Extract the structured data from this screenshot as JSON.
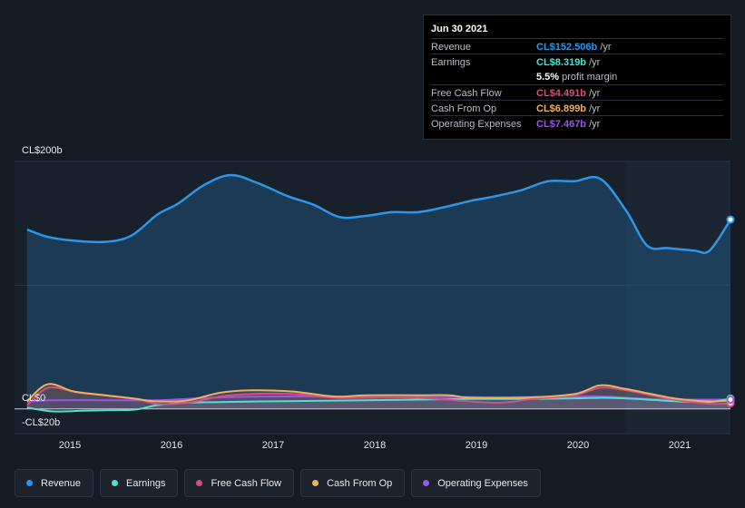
{
  "chart_data": {
    "type": "area",
    "y_ticks": [
      {
        "label": "CL$200b",
        "value": 200
      },
      {
        "label": "CL$0",
        "value": 0
      },
      {
        "label": "-CL$20b",
        "value": -20
      }
    ],
    "x_ticks": [
      "2015",
      "2016",
      "2017",
      "2018",
      "2019",
      "2020",
      "2021"
    ],
    "ylim": [
      -20,
      200
    ],
    "xlim": [
      2014.63,
      2021.5
    ],
    "forecast_start": 2020.5,
    "series": [
      {
        "name": "Revenue",
        "color": "#2e96e6",
        "x": [
          2014.75,
          2014.95,
          2015.2,
          2015.5,
          2015.75,
          2016.0,
          2016.2,
          2016.45,
          2016.7,
          2016.95,
          2017.25,
          2017.5,
          2017.75,
          2018.0,
          2018.25,
          2018.5,
          2018.75,
          2019.0,
          2019.25,
          2019.5,
          2019.75,
          2020.0,
          2020.25,
          2020.5,
          2020.7,
          2020.9,
          2021.15,
          2021.3,
          2021.5
        ],
        "values": [
          145,
          139,
          136,
          135,
          140,
          157,
          166,
          181,
          189,
          183,
          172,
          165,
          155,
          156,
          159,
          159,
          163,
          168,
          172,
          177,
          184,
          184,
          186,
          160,
          132,
          130,
          128,
          128,
          153
        ]
      },
      {
        "name": "Earnings",
        "color": "#4fe0d1",
        "x": [
          2014.75,
          2015.0,
          2015.3,
          2015.6,
          2015.8,
          2016.0,
          2016.3,
          2016.6,
          2017.0,
          2017.5,
          2018.0,
          2018.5,
          2019.0,
          2019.5,
          2020.0,
          2020.3,
          2020.6,
          2021.0,
          2021.3,
          2021.5
        ],
        "values": [
          1,
          -2,
          -1.5,
          -1,
          -0.5,
          3,
          5,
          5.5,
          6,
          6.5,
          7,
          7.5,
          8,
          8,
          8.5,
          9,
          8,
          6,
          5.5,
          8.3
        ]
      },
      {
        "name": "Free Cash Flow",
        "color": "#d44f84",
        "x": [
          2014.75,
          2014.95,
          2015.2,
          2015.5,
          2015.8,
          2016.0,
          2016.3,
          2016.6,
          2016.9,
          2017.3,
          2017.7,
          2018.0,
          2018.5,
          2019.0,
          2019.3,
          2019.6,
          2020.0,
          2020.25,
          2020.5,
          2020.8,
          2021.0,
          2021.3,
          2021.5
        ],
        "values": [
          3,
          17,
          14,
          11,
          8,
          4,
          5,
          10,
          12,
          12,
          9,
          9,
          9,
          6,
          5,
          8,
          11,
          17,
          15,
          10,
          7,
          4,
          4.5
        ]
      },
      {
        "name": "Cash From Op",
        "color": "#f0b05c",
        "x": [
          2014.75,
          2014.95,
          2015.2,
          2015.5,
          2015.8,
          2016.0,
          2016.3,
          2016.6,
          2016.9,
          2017.3,
          2017.7,
          2018.0,
          2018.5,
          2018.8,
          2019.0,
          2019.5,
          2020.0,
          2020.25,
          2020.5,
          2020.8,
          2021.0,
          2021.3,
          2021.5
        ],
        "values": [
          6,
          20,
          14,
          11,
          8,
          6,
          7,
          13,
          15,
          14,
          10,
          11,
          11,
          11,
          9,
          9,
          12,
          19,
          16,
          11,
          8,
          6,
          6.9
        ]
      },
      {
        "name": "Operating Expenses",
        "color": "#9b55e8",
        "x": [
          2014.75,
          2015.0,
          2015.5,
          2016.0,
          2016.5,
          2017.0,
          2017.5,
          2018.0,
          2018.5,
          2019.0,
          2019.5,
          2020.0,
          2020.3,
          2020.7,
          2021.0,
          2021.3,
          2021.5
        ],
        "values": [
          6,
          7,
          7,
          7,
          9,
          10,
          10,
          9.5,
          9.5,
          9.5,
          9.5,
          10,
          10,
          8,
          7.5,
          7.5,
          7.5
        ]
      }
    ]
  },
  "tooltip": {
    "date": "Jun 30 2021",
    "rows": [
      {
        "label": "Revenue",
        "value": "CL$152.506b",
        "unit": " /yr",
        "color": "#2e96e6"
      },
      {
        "label": "Earnings",
        "value": "CL$8.319b",
        "unit": " /yr",
        "color": "#4fe0d1"
      },
      {
        "margin_value": "5.5%",
        "margin_text": " profit margin"
      },
      {
        "label": "Free Cash Flow",
        "value": "CL$4.491b",
        "unit": " /yr",
        "color": "#d44f84"
      },
      {
        "label": "Cash From Op",
        "value": "CL$6.899b",
        "unit": " /yr",
        "color": "#f0b05c"
      },
      {
        "label": "Operating Expenses",
        "value": "CL$7.467b",
        "unit": " /yr",
        "color": "#9b55e8"
      }
    ]
  },
  "legend": [
    {
      "label": "Revenue",
      "color": "#2e96e6"
    },
    {
      "label": "Earnings",
      "color": "#4fe0d1"
    },
    {
      "label": "Free Cash Flow",
      "color": "#d44f84"
    },
    {
      "label": "Cash From Op",
      "color": "#f0b05c"
    },
    {
      "label": "Operating Expenses",
      "color": "#9b55e8"
    }
  ]
}
